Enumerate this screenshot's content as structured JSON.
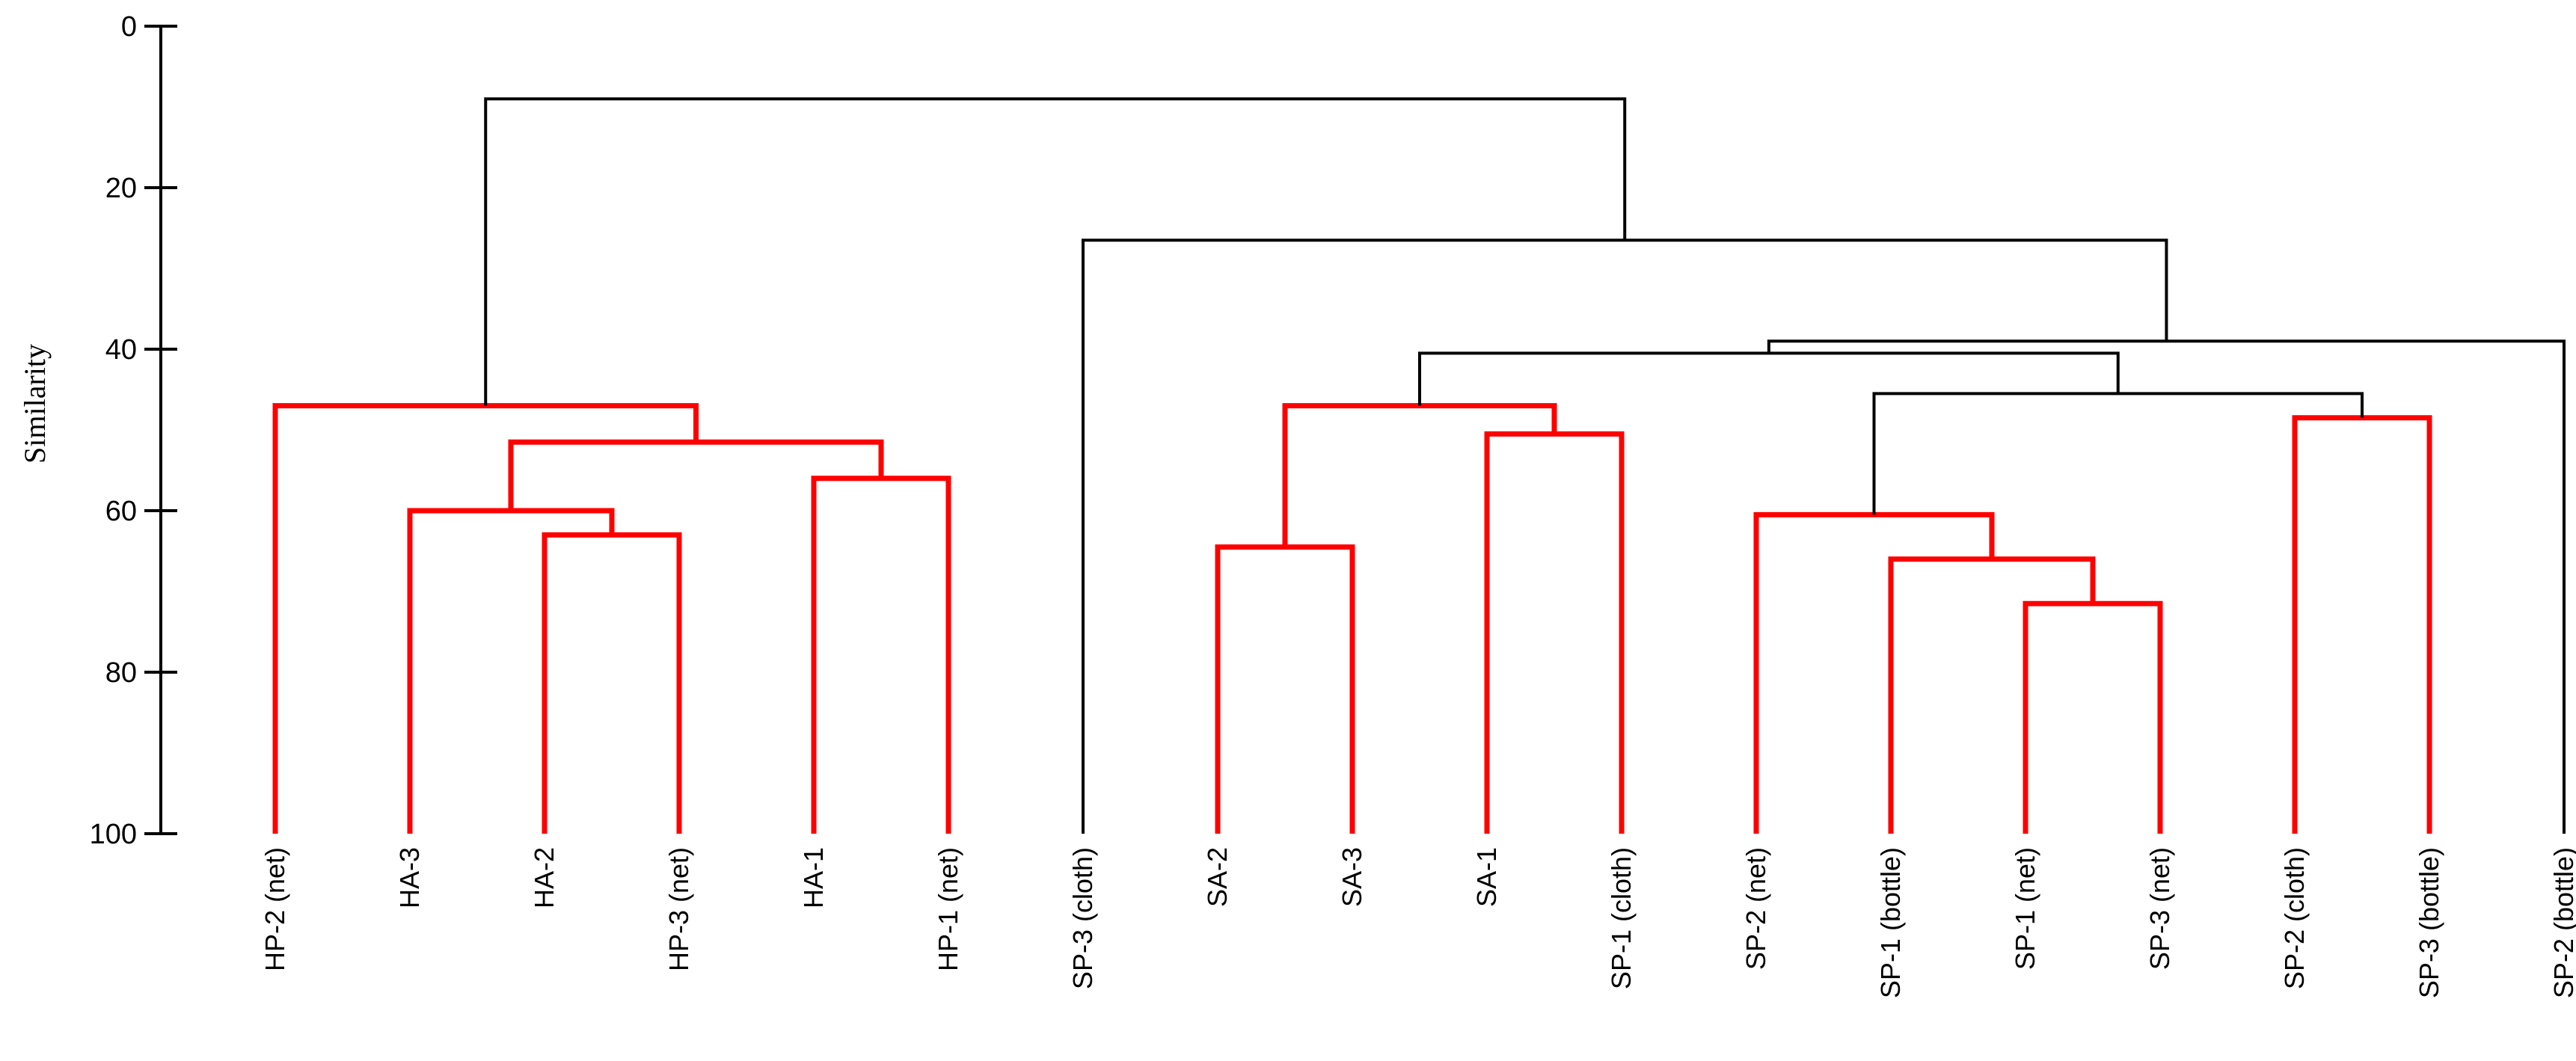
{
  "chart_data": {
    "type": "dendrogram",
    "ylabel": "Similarity",
    "ylim": [
      0,
      100
    ],
    "y_ticks": [
      0,
      20,
      40,
      60,
      80,
      100
    ],
    "colors": {
      "significant": "#ff0000",
      "other": "#000000"
    },
    "leaves": [
      "HP-2 (net)",
      "HA-3",
      "HA-2",
      "HP-3 (net)",
      "HA-1",
      "HP-1 (net)",
      "SP-3 (cloth)",
      "SA-2",
      "SA-3",
      "SA-1",
      "SP-1 (cloth)",
      "SP-2 (net)",
      "SP-1 (bottle)",
      "SP-1 (net)",
      "SP-3 (net)",
      "SP-2 (cloth)",
      "SP-3 (bottle)",
      "SP-2 (bottle)"
    ],
    "merges": [
      {
        "id": "m1",
        "left": "HA-2",
        "right": "HP-3 (net)",
        "similarity": 63,
        "color": "red"
      },
      {
        "id": "m2",
        "left": "HA-3",
        "right": "m1",
        "similarity": 60,
        "color": "red"
      },
      {
        "id": "m3",
        "left": "HA-1",
        "right": "HP-1 (net)",
        "similarity": 56,
        "color": "red"
      },
      {
        "id": "m4",
        "left": "m2",
        "right": "m3",
        "similarity": 51.5,
        "color": "red"
      },
      {
        "id": "m5",
        "left": "HP-2 (net)",
        "right": "m4",
        "similarity": 47,
        "color": "red"
      },
      {
        "id": "m6",
        "left": "SA-2",
        "right": "SA-3",
        "similarity": 64.5,
        "color": "red"
      },
      {
        "id": "m7",
        "left": "SA-1",
        "right": "SP-1 (cloth)",
        "similarity": 50.5,
        "color": "red"
      },
      {
        "id": "m8",
        "left": "m6",
        "right": "m7",
        "similarity": 47,
        "color": "red"
      },
      {
        "id": "m9",
        "left": "SP-1 (net)",
        "right": "SP-3 (net)",
        "similarity": 71.5,
        "color": "red"
      },
      {
        "id": "m10",
        "left": "SP-1 (bottle)",
        "right": "m9",
        "similarity": 66,
        "color": "red"
      },
      {
        "id": "m11",
        "left": "SP-2 (net)",
        "right": "m10",
        "similarity": 60.5,
        "color": "red"
      },
      {
        "id": "m12",
        "left": "SP-2 (cloth)",
        "right": "SP-3 (bottle)",
        "similarity": 48.5,
        "color": "red"
      },
      {
        "id": "m13",
        "left": "m11",
        "right": "m12",
        "similarity": 45.5,
        "color": "black"
      },
      {
        "id": "m14",
        "left": "m8",
        "right": "m13",
        "similarity": 40.5,
        "color": "black"
      },
      {
        "id": "m15",
        "left": "m14",
        "right": "SP-2 (bottle)",
        "similarity": 39,
        "color": "black"
      },
      {
        "id": "m16",
        "left": "SP-3 (cloth)",
        "right": "m15",
        "similarity": 26.5,
        "color": "black"
      },
      {
        "id": "m17",
        "left": "m5",
        "right": "m16",
        "similarity": 9,
        "color": "black"
      }
    ]
  }
}
